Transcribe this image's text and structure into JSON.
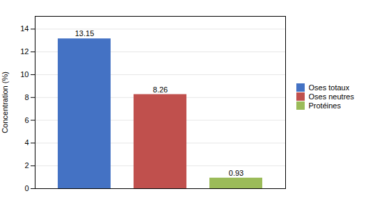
{
  "chart_data": {
    "type": "bar",
    "categories": [
      "Oses totaux",
      "Oses neutres",
      "Protéines"
    ],
    "values": [
      13.15,
      8.26,
      0.93
    ],
    "colors": [
      "#4472C4",
      "#C0504D",
      "#9BBB59"
    ],
    "ylabel": "Concentration (%)",
    "ylim": [
      0,
      15.12
    ],
    "yticks": [
      0,
      2,
      4,
      6,
      8,
      10,
      12,
      14
    ],
    "grid": true,
    "data_labels": true,
    "tick_labels": "y",
    "legend": "right"
  }
}
